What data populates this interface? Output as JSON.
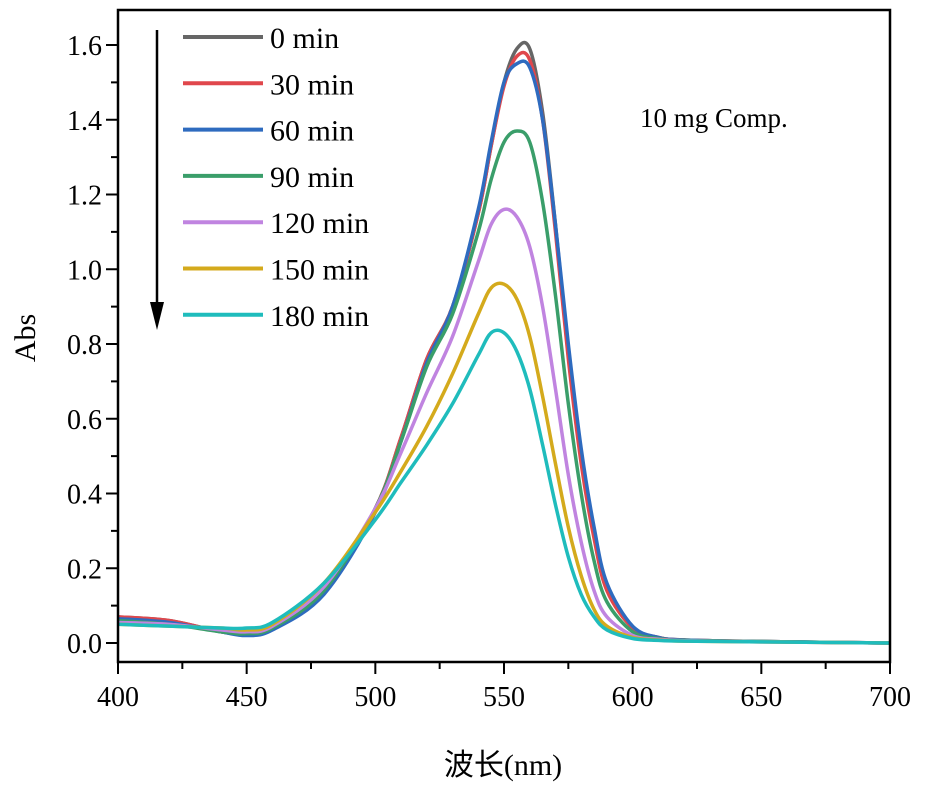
{
  "chart_data": {
    "type": "line",
    "title": "",
    "xlabel": "波长(nm)",
    "ylabel": "Abs",
    "xlim": [
      400,
      700
    ],
    "ylim": [
      -0.05,
      1.7
    ],
    "xticks": [
      "400",
      "450",
      "500",
      "550",
      "600",
      "650",
      "700"
    ],
    "yticks": [
      "0.0",
      "0.2",
      "0.4",
      "0.6",
      "0.8",
      "1.0",
      "1.2",
      "1.4",
      "1.6"
    ],
    "grid": false,
    "legend_placement": "top-left",
    "annotation": "10 mg Comp.",
    "arrow": "downward (decreasing absorbance with time)",
    "x": [
      400,
      420,
      440,
      450,
      460,
      480,
      500,
      510,
      520,
      530,
      540,
      545,
      550,
      555,
      560,
      565,
      570,
      575,
      580,
      585,
      590,
      600,
      610,
      620,
      650,
      700
    ],
    "series": [
      {
        "name": "0 min",
        "color": "#666666",
        "values": [
          0.07,
          0.06,
          0.03,
          0.025,
          0.04,
          0.14,
          0.36,
          0.55,
          0.76,
          0.9,
          1.15,
          1.33,
          1.5,
          1.59,
          1.59,
          1.42,
          1.12,
          0.78,
          0.5,
          0.3,
          0.15,
          0.04,
          0.015,
          0.008,
          0.004,
          0.0
        ]
      },
      {
        "name": "30 min",
        "color": "#e0474c",
        "values": [
          0.07,
          0.06,
          0.03,
          0.025,
          0.04,
          0.14,
          0.36,
          0.55,
          0.76,
          0.9,
          1.15,
          1.33,
          1.49,
          1.57,
          1.56,
          1.4,
          1.1,
          0.76,
          0.48,
          0.28,
          0.14,
          0.04,
          0.015,
          0.008,
          0.004,
          0.0
        ]
      },
      {
        "name": "60 min",
        "color": "#2e6bbf",
        "values": [
          0.065,
          0.055,
          0.03,
          0.02,
          0.035,
          0.13,
          0.35,
          0.54,
          0.75,
          0.9,
          1.16,
          1.34,
          1.5,
          1.55,
          1.54,
          1.4,
          1.12,
          0.8,
          0.52,
          0.31,
          0.16,
          0.045,
          0.015,
          0.008,
          0.004,
          0.0
        ]
      },
      {
        "name": "90 min",
        "color": "#3a9e6a",
        "values": [
          0.06,
          0.05,
          0.03,
          0.025,
          0.04,
          0.14,
          0.36,
          0.54,
          0.74,
          0.88,
          1.1,
          1.24,
          1.34,
          1.37,
          1.34,
          1.18,
          0.93,
          0.64,
          0.4,
          0.22,
          0.11,
          0.03,
          0.012,
          0.007,
          0.004,
          0.0
        ]
      },
      {
        "name": "120 min",
        "color": "#c084e0",
        "values": [
          0.055,
          0.05,
          0.035,
          0.03,
          0.045,
          0.15,
          0.36,
          0.51,
          0.67,
          0.82,
          1.02,
          1.12,
          1.16,
          1.14,
          1.06,
          0.9,
          0.68,
          0.45,
          0.27,
          0.14,
          0.07,
          0.02,
          0.01,
          0.006,
          0.003,
          0.0
        ]
      },
      {
        "name": "150 min",
        "color": "#d4aa1c",
        "values": [
          0.05,
          0.045,
          0.04,
          0.035,
          0.05,
          0.16,
          0.35,
          0.46,
          0.58,
          0.72,
          0.88,
          0.95,
          0.96,
          0.92,
          0.82,
          0.66,
          0.48,
          0.31,
          0.18,
          0.09,
          0.045,
          0.015,
          0.008,
          0.005,
          0.003,
          0.0
        ]
      },
      {
        "name": "180 min",
        "color": "#1fbcbc",
        "values": [
          0.05,
          0.045,
          0.04,
          0.04,
          0.055,
          0.16,
          0.33,
          0.43,
          0.53,
          0.64,
          0.77,
          0.83,
          0.83,
          0.78,
          0.68,
          0.53,
          0.37,
          0.23,
          0.13,
          0.07,
          0.035,
          0.012,
          0.007,
          0.005,
          0.003,
          0.0
        ]
      }
    ]
  }
}
